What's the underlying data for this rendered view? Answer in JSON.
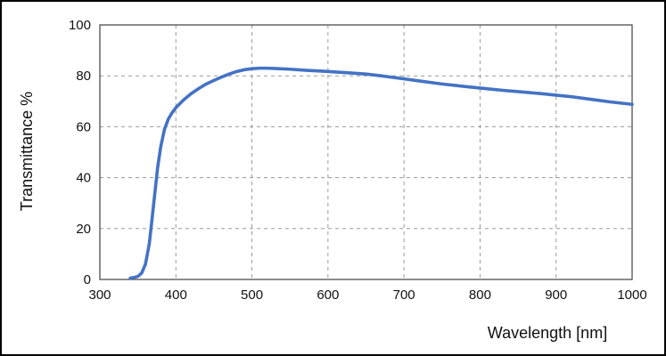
{
  "figure": {
    "background": "#ffffff",
    "border_color": "#000000"
  },
  "chart_data": {
    "type": "line",
    "title": "",
    "xlabel": "Wavelength [nm]",
    "ylabel": "Transmittance %",
    "xlim": [
      300,
      1000
    ],
    "ylim": [
      0,
      100
    ],
    "x_ticks": [
      300,
      400,
      500,
      600,
      700,
      800,
      900,
      1000
    ],
    "y_ticks": [
      0,
      20,
      40,
      60,
      80,
      100
    ],
    "grid": true,
    "grid_style": "dashed",
    "grid_color": "#9a9a9a",
    "plot_border_color": "#4d4d4d",
    "legend": false,
    "series": [
      {
        "name": "Transmittance",
        "color": "#4472C4",
        "x": [
          340,
          345,
          350,
          355,
          360,
          365,
          368,
          372,
          376,
          380,
          385,
          390,
          395,
          400,
          410,
          420,
          430,
          440,
          450,
          460,
          470,
          480,
          490,
          500,
          510,
          520,
          530,
          550,
          570,
          600,
          620,
          650,
          670,
          700,
          720,
          750,
          780,
          800,
          830,
          850,
          880,
          900,
          920,
          950,
          970,
          1000
        ],
        "y": [
          0.5,
          0.8,
          1.2,
          2.5,
          6,
          14,
          22,
          33,
          44,
          52,
          59,
          63,
          65.5,
          67.5,
          70.5,
          73,
          75,
          76.8,
          78.2,
          79.5,
          80.7,
          81.7,
          82.4,
          82.8,
          83,
          83,
          82.9,
          82.6,
          82.2,
          81.7,
          81.3,
          80.7,
          80,
          78.8,
          78,
          76.8,
          75.8,
          75.2,
          74.3,
          73.8,
          73,
          72.4,
          71.8,
          70.6,
          69.8,
          68.8
        ]
      }
    ]
  }
}
